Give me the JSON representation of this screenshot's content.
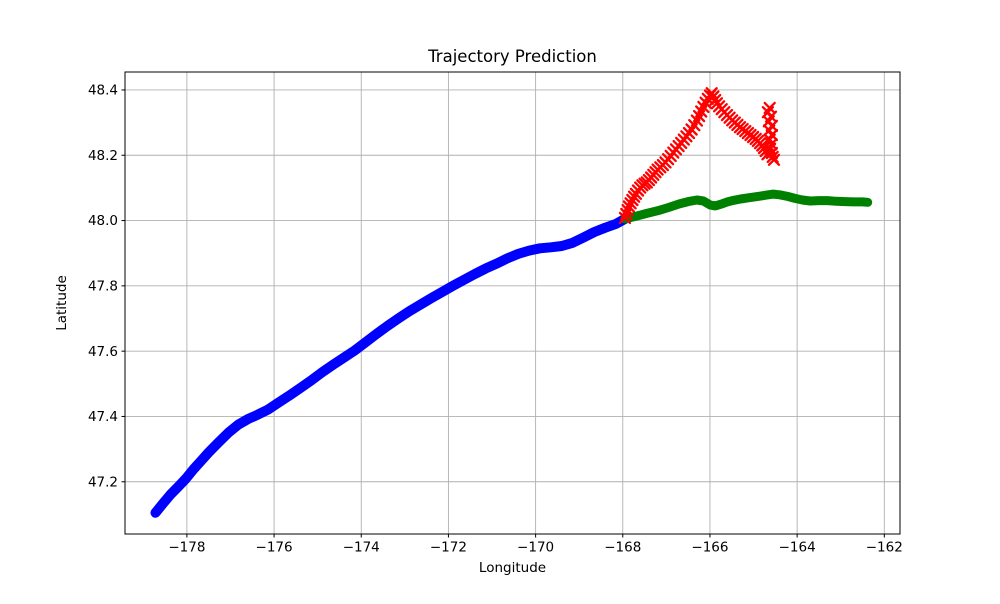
{
  "chart_data": {
    "type": "scatter",
    "title": "Trajectory Prediction",
    "xlabel": "Longitude",
    "ylabel": "Latitude",
    "xlim": [
      -179.42,
      -161.64
    ],
    "ylim": [
      47.04,
      48.455
    ],
    "grid": true,
    "legend": null,
    "xticks": [
      -178,
      -176,
      -174,
      -172,
      -170,
      -168,
      -166,
      -164,
      -162
    ],
    "xtick_labels": [
      "−178",
      "−176",
      "−174",
      "−172",
      "−170",
      "−168",
      "−166",
      "−164",
      "−162"
    ],
    "yticks": [
      47.2,
      47.4,
      47.6,
      47.8,
      48.0,
      48.2,
      48.4
    ],
    "ytick_labels": [
      "47.2",
      "47.4",
      "47.6",
      "47.8",
      "48.0",
      "48.2",
      "48.4"
    ],
    "grid_color": "#b0b0b0",
    "spine_color": "#000000",
    "background_color": "#ffffff",
    "series": [
      {
        "name": "blue-trajectory",
        "color": "#0000ff",
        "style": "thick-line",
        "line_width": 10,
        "points": [
          [
            -178.72,
            47.105
          ],
          [
            -178.55,
            47.133
          ],
          [
            -178.38,
            47.16
          ],
          [
            -178.2,
            47.185
          ],
          [
            -178.02,
            47.21
          ],
          [
            -177.85,
            47.238
          ],
          [
            -177.68,
            47.263
          ],
          [
            -177.5,
            47.29
          ],
          [
            -177.28,
            47.32
          ],
          [
            -177.05,
            47.35
          ],
          [
            -176.82,
            47.375
          ],
          [
            -176.6,
            47.392
          ],
          [
            -176.38,
            47.405
          ],
          [
            -176.15,
            47.42
          ],
          [
            -175.9,
            47.442
          ],
          [
            -175.65,
            47.464
          ],
          [
            -175.4,
            47.487
          ],
          [
            -175.15,
            47.51
          ],
          [
            -174.9,
            47.535
          ],
          [
            -174.65,
            47.558
          ],
          [
            -174.4,
            47.58
          ],
          [
            -174.15,
            47.602
          ],
          [
            -173.9,
            47.627
          ],
          [
            -173.65,
            47.653
          ],
          [
            -173.4,
            47.677
          ],
          [
            -173.15,
            47.7
          ],
          [
            -172.9,
            47.722
          ],
          [
            -172.65,
            47.742
          ],
          [
            -172.4,
            47.762
          ],
          [
            -172.15,
            47.781
          ],
          [
            -171.9,
            47.8
          ],
          [
            -171.65,
            47.818
          ],
          [
            -171.4,
            47.836
          ],
          [
            -171.15,
            47.853
          ],
          [
            -170.9,
            47.868
          ],
          [
            -170.65,
            47.884
          ],
          [
            -170.4,
            47.898
          ],
          [
            -170.15,
            47.908
          ],
          [
            -169.9,
            47.915
          ],
          [
            -169.65,
            47.918
          ],
          [
            -169.4,
            47.922
          ],
          [
            -169.15,
            47.932
          ],
          [
            -168.9,
            47.948
          ],
          [
            -168.65,
            47.965
          ],
          [
            -168.4,
            47.978
          ],
          [
            -168.15,
            47.99
          ],
          [
            -167.95,
            48.005
          ]
        ]
      },
      {
        "name": "green-trajectory",
        "color": "#008000",
        "style": "thick-line",
        "line_width": 9,
        "points": [
          [
            -167.95,
            48.005
          ],
          [
            -167.7,
            48.013
          ],
          [
            -167.45,
            48.022
          ],
          [
            -167.2,
            48.03
          ],
          [
            -166.95,
            48.04
          ],
          [
            -166.7,
            48.051
          ],
          [
            -166.5,
            48.058
          ],
          [
            -166.3,
            48.063
          ],
          [
            -166.15,
            48.06
          ],
          [
            -166.0,
            48.048
          ],
          [
            -165.88,
            48.045
          ],
          [
            -165.75,
            48.05
          ],
          [
            -165.6,
            48.057
          ],
          [
            -165.45,
            48.062
          ],
          [
            -165.3,
            48.066
          ],
          [
            -165.1,
            48.07
          ],
          [
            -164.9,
            48.074
          ],
          [
            -164.7,
            48.078
          ],
          [
            -164.55,
            48.081
          ],
          [
            -164.4,
            48.079
          ],
          [
            -164.22,
            48.074
          ],
          [
            -164.05,
            48.068
          ],
          [
            -163.88,
            48.063
          ],
          [
            -163.7,
            48.06
          ],
          [
            -163.5,
            48.061
          ],
          [
            -163.3,
            48.061
          ],
          [
            -163.1,
            48.059
          ],
          [
            -162.9,
            48.058
          ],
          [
            -162.7,
            48.057
          ],
          [
            -162.5,
            48.057
          ],
          [
            -162.38,
            48.056
          ]
        ]
      },
      {
        "name": "red-prediction",
        "color": "#ff0000",
        "style": "x-markers",
        "marker_size": 10,
        "points": [
          [
            -167.95,
            48.008
          ],
          [
            -167.92,
            48.02
          ],
          [
            -167.89,
            48.032
          ],
          [
            -167.86,
            48.043
          ],
          [
            -167.82,
            48.053
          ],
          [
            -167.78,
            48.063
          ],
          [
            -167.74,
            48.073
          ],
          [
            -167.7,
            48.082
          ],
          [
            -167.65,
            48.092
          ],
          [
            -167.6,
            48.101
          ],
          [
            -167.55,
            48.108
          ],
          [
            -167.5,
            48.113
          ],
          [
            -167.45,
            48.117
          ],
          [
            -167.4,
            48.124
          ],
          [
            -167.35,
            48.132
          ],
          [
            -167.3,
            48.14
          ],
          [
            -167.25,
            48.148
          ],
          [
            -167.2,
            48.156
          ],
          [
            -167.14,
            48.163
          ],
          [
            -167.08,
            48.17
          ],
          [
            -167.02,
            48.178
          ],
          [
            -166.96,
            48.188
          ],
          [
            -166.9,
            48.198
          ],
          [
            -166.84,
            48.208
          ],
          [
            -166.78,
            48.218
          ],
          [
            -166.72,
            48.228
          ],
          [
            -166.66,
            48.238
          ],
          [
            -166.6,
            48.248
          ],
          [
            -166.54,
            48.258
          ],
          [
            -166.48,
            48.268
          ],
          [
            -166.42,
            48.279
          ],
          [
            -166.36,
            48.292
          ],
          [
            -166.3,
            48.306
          ],
          [
            -166.25,
            48.32
          ],
          [
            -166.2,
            48.334
          ],
          [
            -166.15,
            48.348
          ],
          [
            -166.1,
            48.361
          ],
          [
            -166.05,
            48.373
          ],
          [
            -166.0,
            48.383
          ],
          [
            -165.96,
            48.39
          ],
          [
            -165.92,
            48.38
          ],
          [
            -165.88,
            48.369
          ],
          [
            -165.84,
            48.359
          ],
          [
            -165.79,
            48.35
          ],
          [
            -165.73,
            48.341
          ],
          [
            -165.67,
            48.332
          ],
          [
            -165.61,
            48.323
          ],
          [
            -165.55,
            48.315
          ],
          [
            -165.49,
            48.307
          ],
          [
            -165.43,
            48.3
          ],
          [
            -165.37,
            48.293
          ],
          [
            -165.31,
            48.286
          ],
          [
            -165.25,
            48.28
          ],
          [
            -165.19,
            48.274
          ],
          [
            -165.13,
            48.268
          ],
          [
            -165.07,
            48.262
          ],
          [
            -165.01,
            48.256
          ],
          [
            -164.95,
            48.25
          ],
          [
            -164.9,
            48.244
          ],
          [
            -164.85,
            48.237
          ],
          [
            -164.8,
            48.23
          ],
          [
            -164.76,
            48.222
          ],
          [
            -164.72,
            48.213
          ],
          [
            -164.68,
            48.203
          ],
          [
            -164.63,
            48.345
          ],
          [
            -164.67,
            48.332
          ],
          [
            -164.6,
            48.318
          ],
          [
            -164.65,
            48.304
          ],
          [
            -164.58,
            48.29
          ],
          [
            -164.64,
            48.276
          ],
          [
            -164.58,
            48.262
          ],
          [
            -164.63,
            48.248
          ],
          [
            -164.59,
            48.234
          ],
          [
            -164.62,
            48.22
          ],
          [
            -164.58,
            48.207
          ],
          [
            -164.56,
            48.195
          ],
          [
            -164.53,
            48.186
          ]
        ]
      }
    ]
  }
}
